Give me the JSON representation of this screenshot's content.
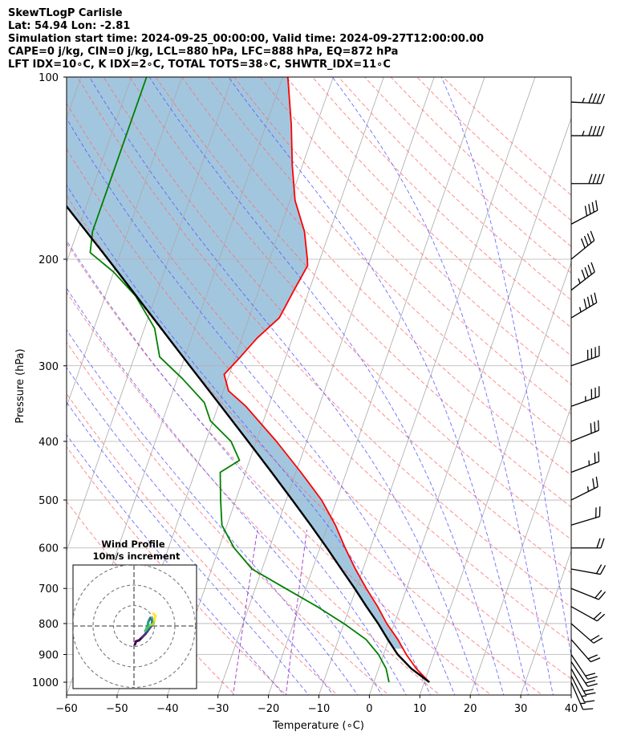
{
  "header": {
    "line1": "SkewTLogP Carlisle",
    "line2": "Lat: 54.94   Lon: -2.81",
    "line3": "Simulation start time: 2024-09-25_00:00:00, Valid time: 2024-09-27T12:00:00.00",
    "line4": "CAPE=0 j/kg, CIN=0 j/kg, LCL=880 hPa, LFC=888 hPa, EQ=872 hPa",
    "line5": "LFT IDX=10∘C, K IDX=2∘C, TOTAL TOTS=38∘C, SHWTR_IDX=11∘C"
  },
  "chart_data": {
    "type": "skew-t",
    "xlabel": "Temperature (∘C)",
    "ylabel": "Pressure (hPa)",
    "xlim": [
      -60,
      40
    ],
    "ylim": [
      1050,
      100
    ],
    "x_ticks": [
      -60,
      -50,
      -40,
      -30,
      -20,
      -10,
      0,
      10,
      20,
      30,
      40
    ],
    "y_ticks": [
      100,
      200,
      300,
      400,
      500,
      600,
      700,
      800,
      900,
      1000
    ],
    "grid": true,
    "colors": {
      "temperature": "#ff0000",
      "dewpoint": "#008000",
      "parcel": "#000000",
      "cape_fill": "#a3c6df",
      "isotherm": "#a9a9a9",
      "dry_adiabat": "#ff6b6b",
      "moist_adiabat": "#5555ff",
      "mixing_ratio": "#9932cc"
    },
    "temperature": [
      {
        "p": 1000,
        "t": 11.0
      },
      {
        "p": 950,
        "t": 7.5
      },
      {
        "p": 900,
        "t": 4.5
      },
      {
        "p": 850,
        "t": 1.8
      },
      {
        "p": 800,
        "t": -1.5
      },
      {
        "p": 750,
        "t": -4.5
      },
      {
        "p": 700,
        "t": -8.0
      },
      {
        "p": 650,
        "t": -11.5
      },
      {
        "p": 600,
        "t": -15.0
      },
      {
        "p": 550,
        "t": -18.5
      },
      {
        "p": 500,
        "t": -23.0
      },
      {
        "p": 450,
        "t": -29.0
      },
      {
        "p": 400,
        "t": -36.0
      },
      {
        "p": 350,
        "t": -44.5
      },
      {
        "p": 330,
        "t": -49.0
      },
      {
        "p": 310,
        "t": -51.0
      },
      {
        "p": 290,
        "t": -49.0
      },
      {
        "p": 270,
        "t": -47.0
      },
      {
        "p": 250,
        "t": -44.0
      },
      {
        "p": 225,
        "t": -43.0
      },
      {
        "p": 205,
        "t": -42.0
      },
      {
        "p": 200,
        "t": -42.5
      },
      {
        "p": 180,
        "t": -45.0
      },
      {
        "p": 160,
        "t": -49.0
      },
      {
        "p": 140,
        "t": -52.0
      },
      {
        "p": 120,
        "t": -55.0
      },
      {
        "p": 100,
        "t": -59.0
      }
    ],
    "dewpoint": [
      {
        "p": 1000,
        "t": 3.0
      },
      {
        "p": 950,
        "t": 1.5
      },
      {
        "p": 900,
        "t": -1.0
      },
      {
        "p": 850,
        "t": -4.5
      },
      {
        "p": 800,
        "t": -10.0
      },
      {
        "p": 750,
        "t": -16.5
      },
      {
        "p": 700,
        "t": -24.0
      },
      {
        "p": 650,
        "t": -32.0
      },
      {
        "p": 600,
        "t": -37.0
      },
      {
        "p": 550,
        "t": -41.0
      },
      {
        "p": 500,
        "t": -43.0
      },
      {
        "p": 450,
        "t": -45.0
      },
      {
        "p": 430,
        "t": -42.0
      },
      {
        "p": 400,
        "t": -45.0
      },
      {
        "p": 370,
        "t": -50.5
      },
      {
        "p": 345,
        "t": -53.0
      },
      {
        "p": 315,
        "t": -59.0
      },
      {
        "p": 290,
        "t": -65.0
      },
      {
        "p": 260,
        "t": -68.0
      },
      {
        "p": 230,
        "t": -74.0
      },
      {
        "p": 210,
        "t": -80.0
      },
      {
        "p": 195,
        "t": -86.0
      },
      {
        "p": 180,
        "t": -87.0
      },
      {
        "p": 160,
        "t": -87.0
      },
      {
        "p": 140,
        "t": -87.0
      },
      {
        "p": 120,
        "t": -87.0
      },
      {
        "p": 100,
        "t": -87.0
      }
    ],
    "parcel": [
      {
        "p": 1000,
        "t": 11.0
      },
      {
        "p": 950,
        "t": 6.5
      },
      {
        "p": 900,
        "t": 2.8
      },
      {
        "p": 850,
        "t": -0.2
      },
      {
        "p": 800,
        "t": -3.2
      },
      {
        "p": 750,
        "t": -6.7
      },
      {
        "p": 700,
        "t": -10.3
      },
      {
        "p": 650,
        "t": -14.3
      },
      {
        "p": 600,
        "t": -18.6
      },
      {
        "p": 550,
        "t": -23.4
      },
      {
        "p": 500,
        "t": -28.8
      },
      {
        "p": 450,
        "t": -34.8
      },
      {
        "p": 400,
        "t": -41.6
      },
      {
        "p": 350,
        "t": -49.4
      },
      {
        "p": 300,
        "t": -58.4
      },
      {
        "p": 250,
        "t": -69.0
      },
      {
        "p": 200,
        "t": -82.0
      },
      {
        "p": 150,
        "t": -99.0
      },
      {
        "p": 100,
        "t": -123.0
      }
    ],
    "wind_barbs": [
      {
        "p": 1000,
        "u": -3,
        "v": 7
      },
      {
        "p": 975,
        "u": -4,
        "v": 8
      },
      {
        "p": 950,
        "u": -5,
        "v": 9
      },
      {
        "p": 925,
        "u": -6,
        "v": 9
      },
      {
        "p": 900,
        "u": -6,
        "v": 9
      },
      {
        "p": 850,
        "u": -7,
        "v": 8
      },
      {
        "p": 800,
        "u": -8,
        "v": 7
      },
      {
        "p": 750,
        "u": -9,
        "v": 5
      },
      {
        "p": 700,
        "u": -10,
        "v": 4
      },
      {
        "p": 650,
        "u": -11,
        "v": 2
      },
      {
        "p": 600,
        "u": -11,
        "v": 0
      },
      {
        "p": 550,
        "u": -10,
        "v": -3
      },
      {
        "p": 500,
        "u": -12,
        "v": -6
      },
      {
        "p": 450,
        "u": -13,
        "v": -5
      },
      {
        "p": 400,
        "u": -15,
        "v": -6
      },
      {
        "p": 350,
        "u": -17,
        "v": -6
      },
      {
        "p": 300,
        "u": -20,
        "v": -7
      },
      {
        "p": 250,
        "u": -20,
        "v": -12
      },
      {
        "p": 225,
        "u": -18,
        "v": -14
      },
      {
        "p": 200,
        "u": -16,
        "v": -13
      },
      {
        "p": 175,
        "u": -19,
        "v": -10
      },
      {
        "p": 150,
        "u": -21,
        "v": 0
      },
      {
        "p": 125,
        "u": -22,
        "v": 0
      },
      {
        "p": 110,
        "u": -22,
        "v": 1
      }
    ],
    "hodograph": {
      "title": "Wind Profile",
      "subtitle": "10m/s increment",
      "rings": [
        10,
        20,
        30
      ],
      "points": [
        {
          "u": 0.5,
          "v": -9.0
        },
        {
          "u": 1.0,
          "v": -7.5
        },
        {
          "u": 2.5,
          "v": -7.0
        },
        {
          "u": 4.0,
          "v": -5.5
        },
        {
          "u": 5.5,
          "v": -4.0
        },
        {
          "u": 7.0,
          "v": -2.0
        },
        {
          "u": 8.5,
          "v": 0.0
        },
        {
          "u": 9.0,
          "v": 2.5
        },
        {
          "u": 8.0,
          "v": 4.0
        },
        {
          "u": 7.0,
          "v": 2.0
        },
        {
          "u": 6.5,
          "v": -0.5
        },
        {
          "u": 5.5,
          "v": -2.5
        },
        {
          "u": 6.5,
          "v": -1.0
        },
        {
          "u": 8.0,
          "v": 0.5
        },
        {
          "u": 9.5,
          "v": 1.0
        },
        {
          "u": 10.0,
          "v": 3.0
        },
        {
          "u": 10.5,
          "v": 5.0
        },
        {
          "u": 9.5,
          "v": 6.0
        }
      ]
    }
  }
}
